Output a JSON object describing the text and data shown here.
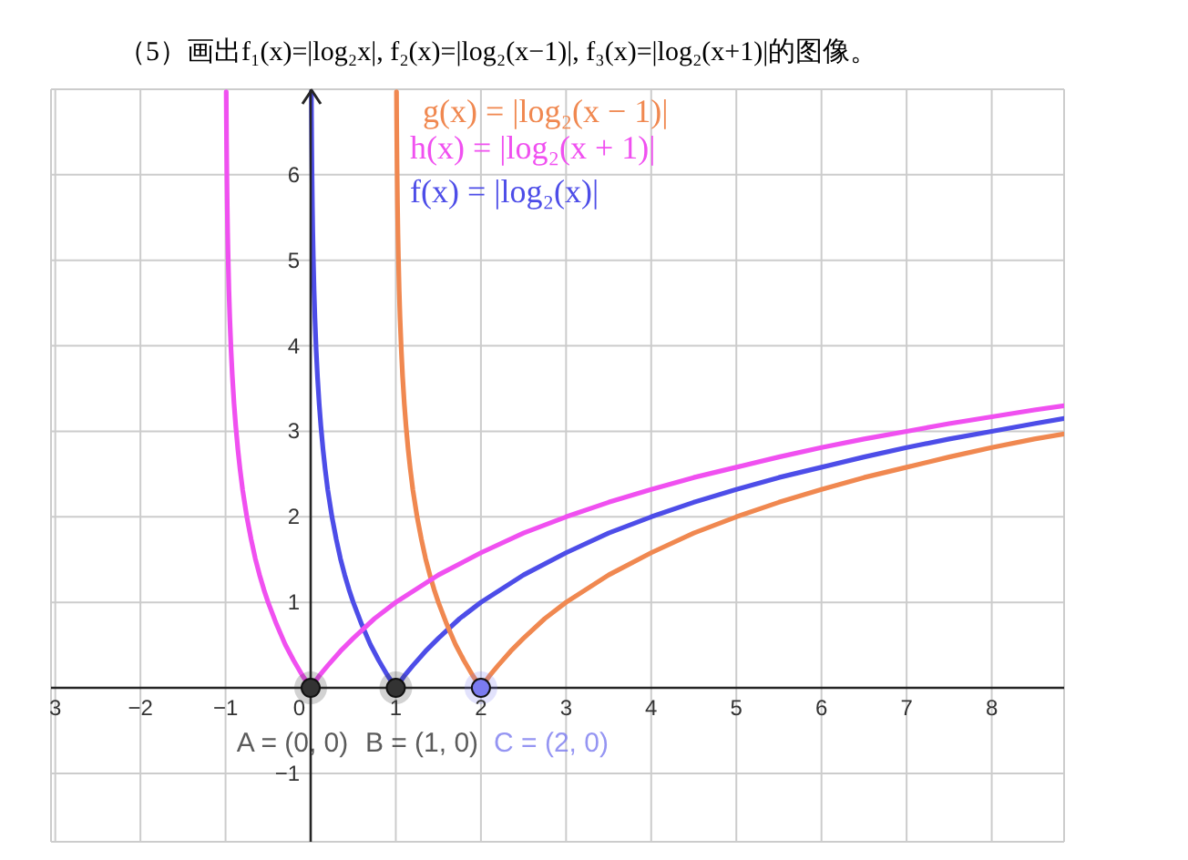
{
  "chart_data": {
    "type": "line",
    "title": "（5）画出f₁(x)=|log₂x|, f₂(x)=|log₂(x−1)|, f₃(x)=|log₂(x+1)|的图像。",
    "xlim": [
      -3.05,
      8.85
    ],
    "ylim": [
      -1.8,
      7
    ],
    "xticks": [
      {
        "value": -3,
        "label": "3"
      },
      -2,
      -1,
      0,
      1,
      2,
      3,
      4,
      5,
      6,
      7,
      8
    ],
    "yticks": [
      -1,
      1,
      2,
      3,
      4,
      5,
      6
    ],
    "grid": true,
    "series": [
      {
        "name": "f(x) = |log₂(x)|",
        "color": "#4d4de8",
        "x": [
          0.008,
          0.01,
          0.012,
          0.015,
          0.02,
          0.025,
          0.03,
          0.04,
          0.05,
          0.065,
          0.08,
          0.1,
          0.12,
          0.145,
          0.17,
          0.2,
          0.25,
          0.3,
          0.35,
          0.4,
          0.45,
          0.5,
          0.6,
          0.7,
          0.8,
          0.9,
          1,
          1.1,
          1.2,
          1.35,
          1.5,
          1.75,
          2,
          2.5,
          3,
          3.5,
          4,
          4.5,
          5,
          5.5,
          6,
          6.5,
          7,
          7.5,
          8,
          8.5,
          8.85
        ],
        "values": [
          6.97,
          6.64,
          6.38,
          6.06,
          5.64,
          5.32,
          5.06,
          4.64,
          4.32,
          3.94,
          3.64,
          3.32,
          3.06,
          2.79,
          2.56,
          2.32,
          2,
          1.74,
          1.51,
          1.32,
          1.15,
          1,
          0.74,
          0.51,
          0.32,
          0.15,
          0,
          0.14,
          0.26,
          0.43,
          0.58,
          0.81,
          1,
          1.32,
          1.58,
          1.81,
          2,
          2.17,
          2.32,
          2.46,
          2.58,
          2.7,
          2.81,
          2.91,
          3,
          3.09,
          3.15
        ]
      },
      {
        "name": "g(x) = |log₂(x − 1)|",
        "color": "#f08850",
        "x": [
          1.008,
          1.01,
          1.012,
          1.015,
          1.02,
          1.025,
          1.03,
          1.04,
          1.05,
          1.065,
          1.08,
          1.1,
          1.12,
          1.145,
          1.17,
          1.2,
          1.25,
          1.3,
          1.35,
          1.4,
          1.45,
          1.5,
          1.6,
          1.7,
          1.8,
          1.9,
          2,
          2.1,
          2.2,
          2.35,
          2.5,
          2.75,
          3,
          3.5,
          4,
          4.5,
          5,
          5.5,
          6,
          6.5,
          7,
          7.5,
          8,
          8.5,
          8.85
        ],
        "values": [
          6.97,
          6.64,
          6.38,
          6.06,
          5.64,
          5.32,
          5.06,
          4.64,
          4.32,
          3.94,
          3.64,
          3.32,
          3.06,
          2.79,
          2.56,
          2.32,
          2,
          1.74,
          1.51,
          1.32,
          1.15,
          1,
          0.74,
          0.51,
          0.32,
          0.15,
          0,
          0.14,
          0.26,
          0.43,
          0.58,
          0.81,
          1,
          1.32,
          1.58,
          1.81,
          2,
          2.17,
          2.32,
          2.46,
          2.58,
          2.7,
          2.81,
          2.91,
          2.97
        ]
      },
      {
        "name": "h(x) = |log₂(x + 1)|",
        "color": "#f050f0",
        "x": [
          -0.992,
          -0.99,
          -0.988,
          -0.985,
          -0.98,
          -0.975,
          -0.97,
          -0.96,
          -0.95,
          -0.935,
          -0.92,
          -0.9,
          -0.88,
          -0.855,
          -0.83,
          -0.8,
          -0.75,
          -0.7,
          -0.65,
          -0.6,
          -0.55,
          -0.5,
          -0.4,
          -0.3,
          -0.2,
          -0.1,
          0,
          0.1,
          0.2,
          0.35,
          0.5,
          0.75,
          1,
          1.5,
          2,
          2.5,
          3,
          3.5,
          4,
          4.5,
          5,
          5.5,
          6,
          6.5,
          7,
          7.5,
          8,
          8.5,
          8.85
        ],
        "values": [
          6.97,
          6.64,
          6.38,
          6.06,
          5.64,
          5.32,
          5.06,
          4.64,
          4.32,
          3.94,
          3.64,
          3.32,
          3.06,
          2.79,
          2.56,
          2.32,
          2,
          1.74,
          1.51,
          1.32,
          1.15,
          1,
          0.74,
          0.51,
          0.32,
          0.15,
          0,
          0.14,
          0.26,
          0.43,
          0.58,
          0.81,
          1,
          1.32,
          1.58,
          1.81,
          2,
          2.17,
          2.32,
          2.46,
          2.58,
          2.7,
          2.81,
          2.91,
          3,
          3.09,
          3.17,
          3.25,
          3.3
        ]
      },
      {
        "type": "scatter",
        "marker": "circle",
        "x": [
          0,
          1,
          2
        ],
        "values": [
          0,
          0,
          0
        ],
        "colors": [
          "#333333",
          "#333333",
          "#7b7bf0"
        ],
        "value_labels": [
          "A = (0, 0)",
          "B = (1, 0)",
          "C = (2, 0)"
        ]
      }
    ]
  }
}
